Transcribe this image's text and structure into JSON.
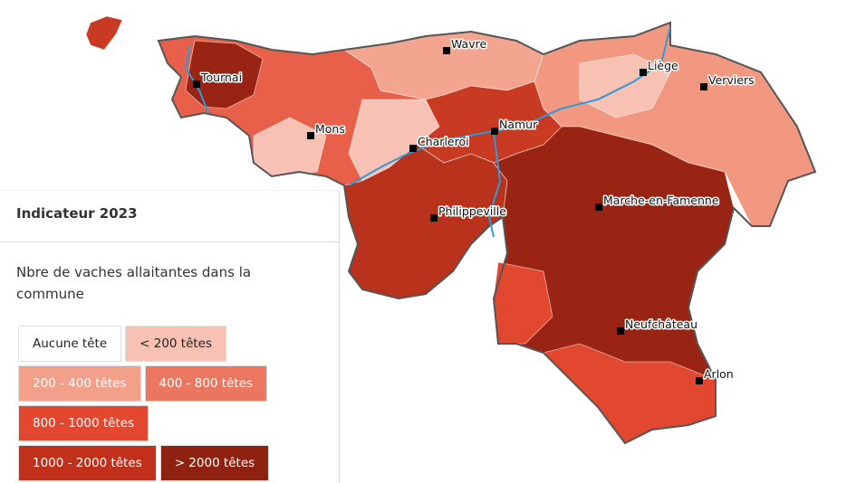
{
  "legend": {
    "title": "Indicateur 2023",
    "description": "Nbre de vaches allaitantes dans la commune",
    "classes": [
      {
        "label": "Aucune tête",
        "color": "#ffffff",
        "text_color": "#222222"
      },
      {
        "label": "< 200 têtes",
        "color": "#f7c2b4",
        "text_color": "#222222"
      },
      {
        "label": "200 - 400 têtes",
        "color": "#f3a08b",
        "text_color": "#ffffff"
      },
      {
        "label": "400 - 800 têtes",
        "color": "#ec7760",
        "text_color": "#ffffff"
      },
      {
        "label": "800 - 1000 têtes",
        "color": "#e2482f",
        "text_color": "#ffffff"
      },
      {
        "label": "1000 - 2000 têtes",
        "color": "#c0301a",
        "text_color": "#ffffff"
      },
      {
        "label": "> 2000 têtes",
        "color": "#8f2110",
        "text_color": "#ffffff"
      }
    ]
  },
  "cities": [
    "Wavre",
    "Tournai",
    "Mons",
    "Charleroi",
    "Namur",
    "Liège",
    "Verviers",
    "Marche-en-Famenne",
    "Philippeville",
    "Neufchâteau",
    "Arlon"
  ]
}
